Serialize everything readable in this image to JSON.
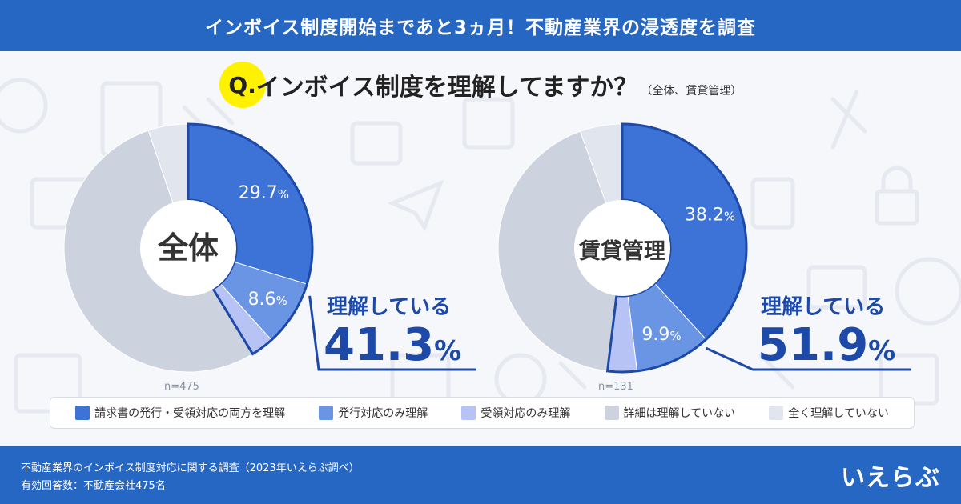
{
  "header": {
    "title": "インボイス制度開始まであと3ヵ月！不動産業界の浸透度を調査"
  },
  "question": {
    "q": "Q.",
    "text": "インボイス制度を理解してますか？",
    "sub": "（全体、賃貸管理）"
  },
  "colors": {
    "both": "#3d73d6",
    "issue_only": "#6a95e4",
    "receive_only": "#b7c3f5",
    "detail_not": "#ccd3df",
    "not_at_all": "#e1e5ed",
    "outline": "#1d4aa8",
    "banner": "#2667c4"
  },
  "chart_data": [
    {
      "type": "pie",
      "title": "全体",
      "n_label": "n=475",
      "categories": [
        "請求書の発行・受領対応の両方を理解",
        "発行対応のみ理解",
        "受領対応のみ理解",
        "詳細は理解していない",
        "全く理解していない"
      ],
      "values": [
        29.7,
        8.6,
        3.0,
        53.5,
        5.2
      ],
      "data_labels": [
        "29.7",
        "8.6",
        "",
        "",
        ""
      ],
      "understanding": {
        "label": "理解している",
        "value": "41.3",
        "unit": "%"
      }
    },
    {
      "type": "pie",
      "title": "賃貸管理",
      "n_label": "n=131",
      "categories": [
        "請求書の発行・受領対応の両方を理解",
        "発行対応のみ理解",
        "受領対応のみ理解",
        "詳細は理解していない",
        "全く理解していない"
      ],
      "values": [
        38.2,
        9.9,
        3.8,
        42.6,
        5.5
      ],
      "data_labels": [
        "38.2",
        "9.9",
        "",
        "",
        ""
      ],
      "understanding": {
        "label": "理解している",
        "value": "51.9",
        "unit": "%"
      }
    }
  ],
  "legend": [
    {
      "label": "請求書の発行・受領対応の両方を理解",
      "color": "#3d73d6"
    },
    {
      "label": "発行対応のみ理解",
      "color": "#6a95e4"
    },
    {
      "label": "受領対応のみ理解",
      "color": "#b7c3f5"
    },
    {
      "label": "詳細は理解していない",
      "color": "#ccd3df"
    },
    {
      "label": "全く理解していない",
      "color": "#e1e5ed"
    }
  ],
  "footer": {
    "source": "不動産業界のインボイス制度対応に関する調査（2023年いえらぶ調べ）",
    "respondents": "有効回答数：不動産会社475名",
    "logo": "いえらぶ"
  }
}
